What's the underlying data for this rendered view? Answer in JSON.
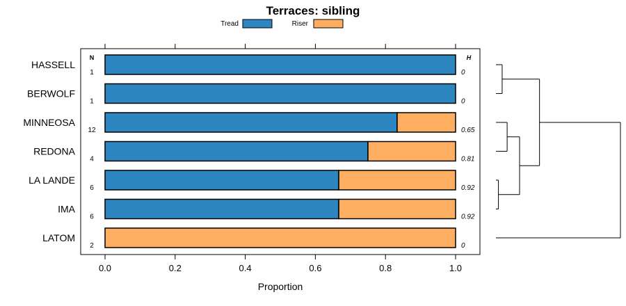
{
  "chart_data": {
    "type": "bar",
    "stacked": true,
    "orientation": "horizontal",
    "title": "Terraces: sibling",
    "xlabel": "Proportion",
    "ylabel": "",
    "xlim": [
      0,
      1
    ],
    "xticks": [
      "0.0",
      "0.2",
      "0.4",
      "0.6",
      "0.8",
      "1.0"
    ],
    "tick_values": [
      0,
      0.2,
      0.4,
      0.6,
      0.8,
      1.0
    ],
    "legend_position": "top",
    "categories": [
      "HASSELL",
      "BERWOLF",
      "MINNEOSA",
      "REDONA",
      "LA LANDE",
      "IMA",
      "LATOM"
    ],
    "series": [
      {
        "name": "Tread",
        "color": "#2E86C1",
        "values": [
          1.0,
          1.0,
          0.8333,
          0.75,
          0.6667,
          0.6667,
          0.0
        ]
      },
      {
        "name": "Riser",
        "color": "#FDAE61",
        "values": [
          0.0,
          0.0,
          0.1667,
          0.25,
          0.3333,
          0.3333,
          1.0
        ]
      }
    ],
    "n_header": "N",
    "h_header": "H",
    "n_values": [
      "1",
      "1",
      "12",
      "4",
      "6",
      "6",
      "2"
    ],
    "h_values": [
      "0",
      "0",
      "0.65",
      "0.81",
      "0.92",
      "0.92",
      "0"
    ],
    "dendrogram": {
      "leaf_order": [
        "HASSELL",
        "BERWOLF",
        "MINNEOSA",
        "REDONA",
        "LA LANDE",
        "IMA",
        "LATOM"
      ],
      "merges": [
        {
          "left": 0,
          "right": 1,
          "height": 0.05
        },
        {
          "left": 2,
          "right": 3,
          "height": 0.09
        },
        {
          "left": 4,
          "right": 5,
          "height": 0.02
        },
        {
          "left": 8,
          "right": 9,
          "height": 0.19
        },
        {
          "left": 7,
          "right": 10,
          "height": 0.35
        },
        {
          "left": 6,
          "right": 11,
          "height": 1.0
        }
      ]
    }
  }
}
